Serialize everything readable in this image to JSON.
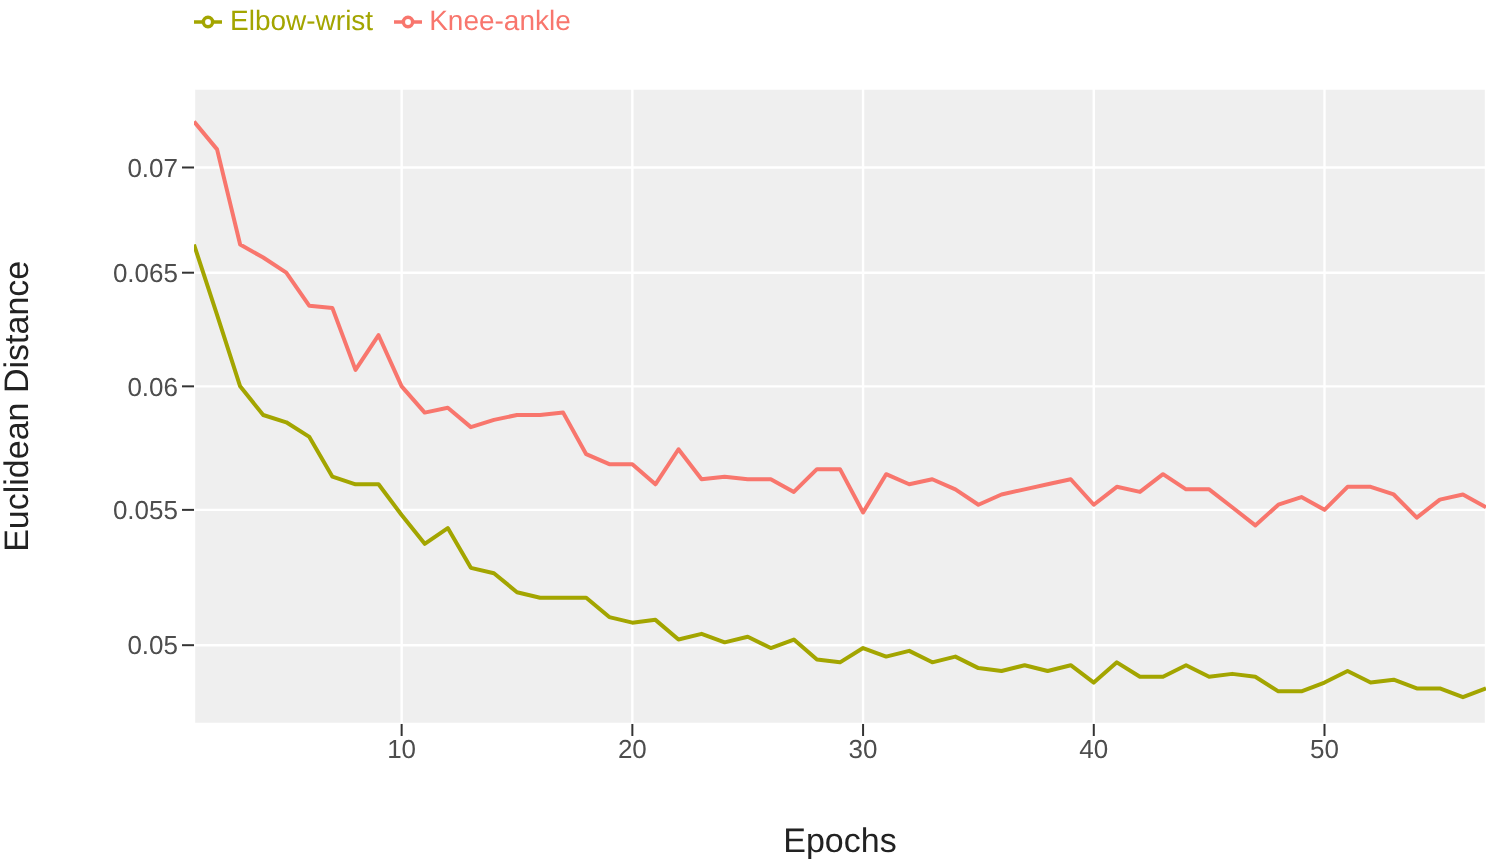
{
  "chart_data": {
    "type": "line",
    "xlabel": "Epochs",
    "ylabel": "Euclidean Distance",
    "x": [
      1,
      2,
      3,
      4,
      5,
      6,
      7,
      8,
      9,
      10,
      11,
      12,
      13,
      14,
      15,
      16,
      17,
      18,
      19,
      20,
      21,
      22,
      23,
      24,
      25,
      26,
      27,
      28,
      29,
      30,
      31,
      32,
      33,
      34,
      35,
      36,
      37,
      38,
      39,
      40,
      41,
      42,
      43,
      44,
      45,
      46,
      47,
      48,
      49,
      50,
      51,
      52,
      53,
      54,
      55,
      56,
      57
    ],
    "series": [
      {
        "name": "Knee-ankle",
        "color": "#f8766d",
        "values": [
          0.0723,
          0.0709,
          0.0663,
          0.0657,
          0.065,
          0.0635,
          0.0634,
          0.0607,
          0.0622,
          0.06,
          0.0589,
          0.0591,
          0.0583,
          0.0586,
          0.0588,
          0.0588,
          0.0589,
          0.0572,
          0.0568,
          0.0568,
          0.056,
          0.0574,
          0.0562,
          0.0563,
          0.0562,
          0.0562,
          0.0557,
          0.0566,
          0.0566,
          0.0549,
          0.0564,
          0.056,
          0.0562,
          0.0558,
          0.0552,
          0.0556,
          0.0558,
          0.056,
          0.0562,
          0.0552,
          0.0559,
          0.0557,
          0.0564,
          0.0558,
          0.0558,
          0.0551,
          0.0544,
          0.0552,
          0.0555,
          0.055,
          0.0559,
          0.0559,
          0.0556,
          0.0547,
          0.0554,
          0.0556,
          0.0551
        ]
      },
      {
        "name": "Elbow-wrist",
        "color": "#a3a500",
        "values": [
          0.0663,
          0.0631,
          0.06,
          0.0588,
          0.0585,
          0.0579,
          0.0563,
          0.056,
          0.056,
          0.0548,
          0.0537,
          0.0543,
          0.0528,
          0.0526,
          0.0519,
          0.0517,
          0.0517,
          0.0517,
          0.051,
          0.0508,
          0.0509,
          0.0502,
          0.0504,
          0.0501,
          0.0503,
          0.0499,
          0.0502,
          0.0495,
          0.0494,
          0.0499,
          0.0496,
          0.0498,
          0.0494,
          0.0496,
          0.0492,
          0.0491,
          0.0493,
          0.0491,
          0.0493,
          0.0487,
          0.0494,
          0.0489,
          0.0489,
          0.0493,
          0.0489,
          0.049,
          0.0489,
          0.0484,
          0.0484,
          0.0487,
          0.0491,
          0.0487,
          0.0488,
          0.0485,
          0.0485,
          0.0482,
          0.0485
        ]
      }
    ],
    "xlim": [
      1,
      57
    ],
    "xticks": [
      10,
      20,
      30,
      40,
      50
    ],
    "ylim": [
      0.0473,
      0.074
    ],
    "yticks": [
      0.05,
      0.055,
      0.06,
      0.065,
      0.07
    ],
    "log": "y",
    "grid": true,
    "legend": "top left",
    "marker": "none",
    "line_style": "solid"
  }
}
